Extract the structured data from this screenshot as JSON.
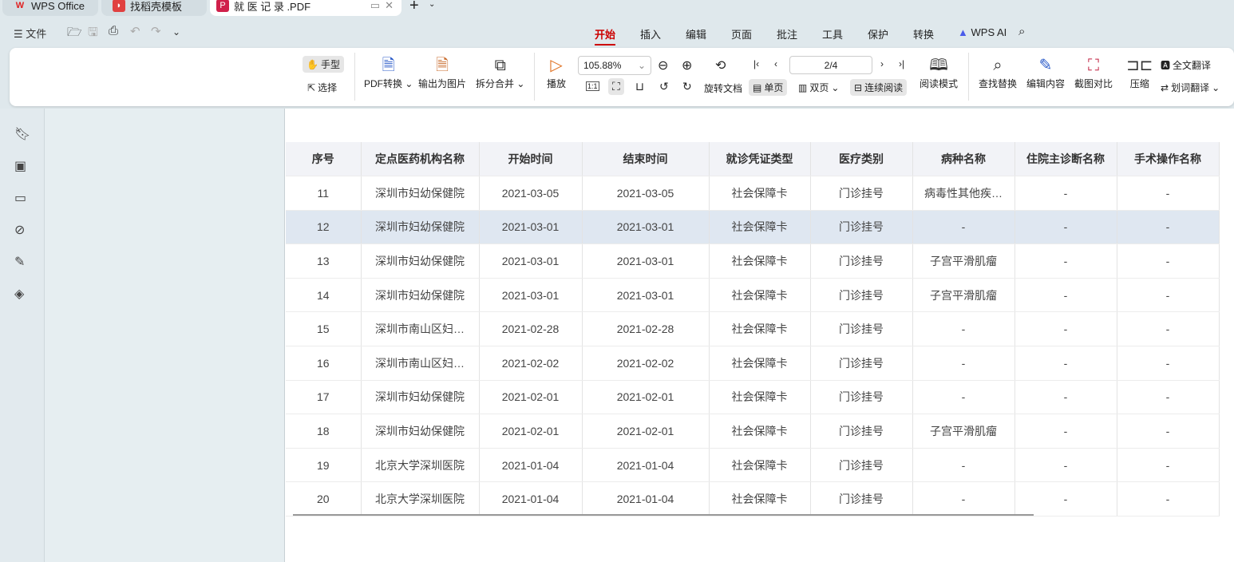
{
  "tabs": [
    {
      "label": "WPS Office",
      "icon": "wps-logo"
    },
    {
      "label": "找稻壳模板",
      "icon": "docer-logo"
    },
    {
      "label": "就 医 记 录 .PDF",
      "icon": "pdf-icon",
      "active": true
    }
  ],
  "quick": {
    "file": "文件"
  },
  "menu": [
    "开始",
    "插入",
    "编辑",
    "页面",
    "批注",
    "工具",
    "保护",
    "转换",
    "WPS AI"
  ],
  "menu_active": "开始",
  "ribbon": {
    "hand": "手型",
    "select": "选择",
    "pdf_convert": "PDF转换",
    "export_image": "输出为图片",
    "split_merge": "拆分合并",
    "play": "播放",
    "zoom": "105.88%",
    "page": "2/4",
    "rotate": "旋转文档",
    "single": "单页",
    "double": "双页",
    "continuous": "连续阅读",
    "read_mode": "阅读模式",
    "find_replace": "查找替换",
    "edit_content": "编辑内容",
    "screenshot_compare": "截图对比",
    "compress": "压缩",
    "full_translate": "全文翻译",
    "word_translate": "划词翻译",
    "actual_size": "1:1"
  },
  "table": {
    "headers": [
      "序号",
      "定点医药机构名称",
      "开始时间",
      "结束时间",
      "就诊凭证类型",
      "医疗类别",
      "病种名称",
      "住院主诊断名称",
      "手术操作名称"
    ],
    "rows": [
      [
        "11",
        "深圳市妇幼保健院",
        "2021-03-05",
        "2021-03-05",
        "社会保障卡",
        "门诊挂号",
        "病毒性其他疾…",
        "-",
        "-"
      ],
      [
        "12",
        "深圳市妇幼保健院",
        "2021-03-01",
        "2021-03-01",
        "社会保障卡",
        "门诊挂号",
        "-",
        "-",
        "-"
      ],
      [
        "13",
        "深圳市妇幼保健院",
        "2021-03-01",
        "2021-03-01",
        "社会保障卡",
        "门诊挂号",
        "子宫平滑肌瘤",
        "-",
        "-"
      ],
      [
        "14",
        "深圳市妇幼保健院",
        "2021-03-01",
        "2021-03-01",
        "社会保障卡",
        "门诊挂号",
        "子宫平滑肌瘤",
        "-",
        "-"
      ],
      [
        "15",
        "深圳市南山区妇…",
        "2021-02-28",
        "2021-02-28",
        "社会保障卡",
        "门诊挂号",
        "-",
        "-",
        "-"
      ],
      [
        "16",
        "深圳市南山区妇…",
        "2021-02-02",
        "2021-02-02",
        "社会保障卡",
        "门诊挂号",
        "-",
        "-",
        "-"
      ],
      [
        "17",
        "深圳市妇幼保健院",
        "2021-02-01",
        "2021-02-01",
        "社会保障卡",
        "门诊挂号",
        "-",
        "-",
        "-"
      ],
      [
        "18",
        "深圳市妇幼保健院",
        "2021-02-01",
        "2021-02-01",
        "社会保障卡",
        "门诊挂号",
        "子宫平滑肌瘤",
        "-",
        "-"
      ],
      [
        "19",
        "北京大学深圳医院",
        "2021-01-04",
        "2021-01-04",
        "社会保障卡",
        "门诊挂号",
        "-",
        "-",
        "-"
      ],
      [
        "20",
        "北京大学深圳医院",
        "2021-01-04",
        "2021-01-04",
        "社会保障卡",
        "门诊挂号",
        "-",
        "-",
        "-"
      ]
    ],
    "highlight_row": 1
  },
  "colors": {
    "accent": "#c00000",
    "highlight": "#dfe7f1"
  }
}
